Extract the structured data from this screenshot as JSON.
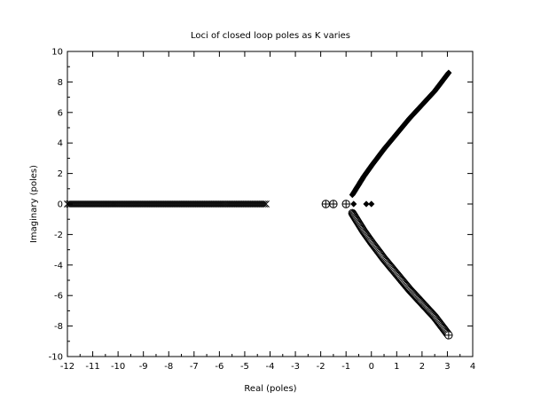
{
  "chart_data": {
    "type": "scatter",
    "title": "Loci of closed loop poles as K varies",
    "xlabel": "Real (poles)",
    "ylabel": "Imaginary (poles)",
    "xlim": [
      -12,
      4
    ],
    "ylim": [
      -10,
      10
    ],
    "x_ticks": [
      -12,
      -11,
      -10,
      -9,
      -8,
      -7,
      -6,
      -5,
      -4,
      -3,
      -2,
      -1,
      0,
      1,
      2,
      3,
      4
    ],
    "y_ticks": [
      -10,
      -8,
      -6,
      -4,
      -2,
      0,
      2,
      4,
      6,
      8,
      10
    ],
    "grid": false,
    "legend": "none",
    "series": [
      {
        "marker": "x",
        "color": "#000000",
        "x_range": [
          -12,
          -4.1
        ],
        "y": 0
      },
      {
        "marker": "diamond-filled",
        "color": "#000000",
        "start_points": [
          [
            -0.7,
            0
          ],
          [
            -0.2,
            0
          ],
          [
            0.0,
            0
          ]
        ],
        "curve": [
          [
            -0.75,
            0.6
          ],
          [
            -0.6,
            1.0
          ],
          [
            -0.3,
            1.8
          ],
          [
            0.0,
            2.5
          ],
          [
            0.5,
            3.6
          ],
          [
            1.0,
            4.6
          ],
          [
            1.5,
            5.6
          ],
          [
            2.0,
            6.5
          ],
          [
            2.5,
            7.4
          ],
          [
            3.05,
            8.6
          ]
        ]
      },
      {
        "marker": "circle-plus",
        "color": "#000000",
        "start_points": [
          [
            -1.8,
            0
          ],
          [
            -1.5,
            0
          ],
          [
            -1.0,
            0
          ]
        ],
        "curve": [
          [
            -0.75,
            -0.6
          ],
          [
            -0.6,
            -1.0
          ],
          [
            -0.3,
            -1.8
          ],
          [
            0.0,
            -2.5
          ],
          [
            0.5,
            -3.6
          ],
          [
            1.0,
            -4.6
          ],
          [
            1.5,
            -5.6
          ],
          [
            2.0,
            -6.5
          ],
          [
            2.5,
            -7.4
          ],
          [
            3.05,
            -8.6
          ]
        ]
      }
    ]
  }
}
